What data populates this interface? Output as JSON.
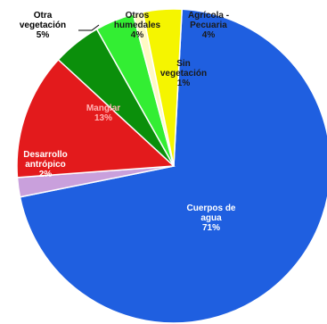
{
  "chart_data": {
    "type": "pie",
    "title": "",
    "slices": [
      {
        "name": "Cuerpos de agua",
        "value": 71,
        "label_lines": [
          "Cuerpos de",
          "agua",
          "71%"
        ],
        "color": "#1f5fe0",
        "label_color": "#ffffff"
      },
      {
        "name": "Desarrollo antrópico",
        "value": 2,
        "label_lines": [
          "Desarrollo",
          "antrópico",
          "2%"
        ],
        "color": "#c9a0dc",
        "label_color": "#ffffff"
      },
      {
        "name": "Manglar",
        "value": 13,
        "label_lines": [
          "Manglar",
          "13%"
        ],
        "color": "#e31a1c",
        "label_color": "#ffb3b3"
      },
      {
        "name": "Otra vegetación",
        "value": 5,
        "label_lines": [
          "Otra",
          "vegetación",
          "5%"
        ],
        "color": "#0b8f0b",
        "label_color": "#000000"
      },
      {
        "name": "Otros humedales",
        "value": 4,
        "label_lines": [
          "Otros",
          "humedales",
          "4%"
        ],
        "color": "#33ee33",
        "label_color": "#1a1a1a"
      },
      {
        "name": "Sin vegetación",
        "value": 1,
        "label_lines": [
          "Sin",
          "vegetación",
          "1%"
        ],
        "color": "#fff9c4",
        "label_color": "#1a1a1a"
      },
      {
        "name": "Agrícola - Pecuaria",
        "value": 4,
        "label_lines": [
          "Agrícola -",
          "Pecuaria",
          "4%"
        ],
        "color": "#f5f500",
        "label_color": "#1a1a1a"
      }
    ]
  }
}
